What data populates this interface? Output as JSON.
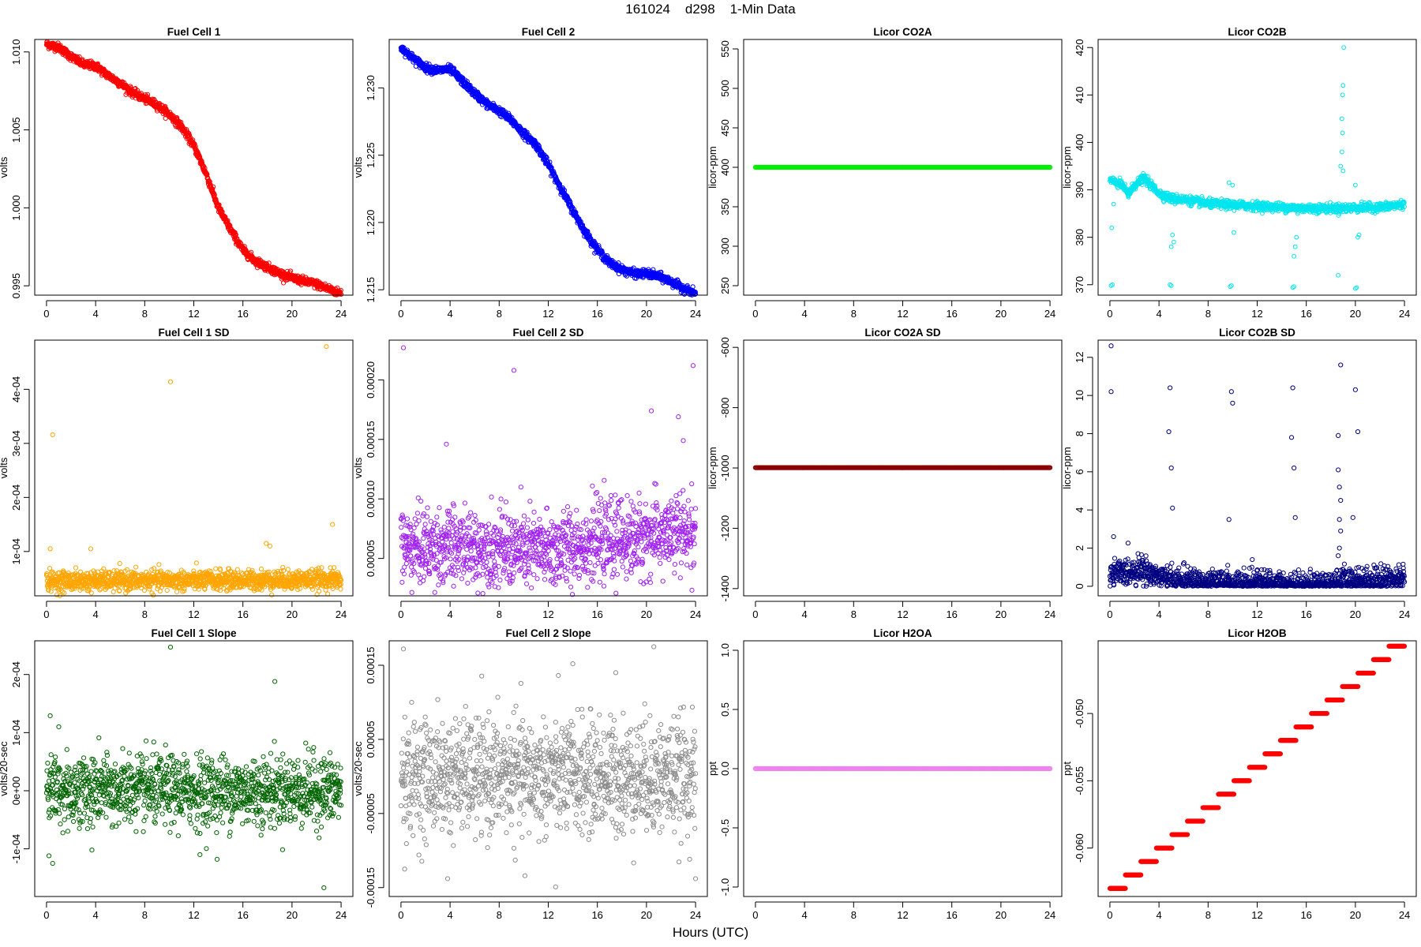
{
  "page": {
    "title": "161024    d298    1-Min Data",
    "xlabel": "Hours (UTC)"
  },
  "colors": {
    "red": "#ff0000",
    "blue": "#0000ff",
    "green": "#00ee00",
    "cyan": "#00e5ee",
    "orange": "#ffa500",
    "purple": "#a020f0",
    "darkred": "#8b0000",
    "navy": "#000080",
    "darkgreen": "#006400",
    "gray": "#8c8c8c",
    "violet": "#ee82ee"
  },
  "chart_data": [
    {
      "type": "scatter",
      "title": "Fuel Cell 1",
      "ylabel": "volts",
      "color": "#ff0000",
      "xlim": [
        -0.96,
        24.96
      ],
      "ylim": [
        0.9944,
        1.0108
      ],
      "xticks": [
        0,
        4,
        8,
        12,
        16,
        20,
        24
      ],
      "xtick_labels": [
        "0",
        "4",
        "8",
        "12",
        "16",
        "20",
        "24"
      ],
      "yticks": [
        0.995,
        1.0,
        1.005,
        1.01
      ],
      "ytick_labels": [
        "0.995",
        "1.000",
        "1.005",
        "1.010"
      ],
      "trend": [
        [
          0,
          1.0105
        ],
        [
          1,
          1.0103
        ],
        [
          2,
          1.0097
        ],
        [
          3,
          1.0092
        ],
        [
          4,
          1.0091
        ],
        [
          5,
          1.0085
        ],
        [
          6,
          1.008
        ],
        [
          7,
          1.0074
        ],
        [
          8,
          1.007
        ],
        [
          9,
          1.0066
        ],
        [
          10,
          1.006
        ],
        [
          11,
          1.0052
        ],
        [
          12,
          1.004
        ],
        [
          13,
          1.0022
        ],
        [
          14,
          1.0
        ],
        [
          15,
          0.9986
        ],
        [
          16,
          0.9973
        ],
        [
          17,
          0.9966
        ],
        [
          18,
          0.9962
        ],
        [
          19,
          0.9958
        ],
        [
          20,
          0.9955
        ],
        [
          21,
          0.9953
        ],
        [
          22,
          0.9951
        ],
        [
          23,
          0.9948
        ],
        [
          24,
          0.9945
        ]
      ],
      "noise": 0.00013,
      "marker_size": 2.6
    },
    {
      "type": "scatter",
      "title": "Fuel Cell 2",
      "ylabel": "volts",
      "color": "#0000ff",
      "xlim": [
        -0.96,
        24.96
      ],
      "ylim": [
        1.2146,
        1.2336
      ],
      "xticks": [
        0,
        4,
        8,
        12,
        16,
        20,
        24
      ],
      "xtick_labels": [
        "0",
        "4",
        "8",
        "12",
        "16",
        "20",
        "24"
      ],
      "yticks": [
        1.215,
        1.22,
        1.225,
        1.23
      ],
      "ytick_labels": [
        "1.215",
        "1.220",
        "1.225",
        "1.230"
      ],
      "trend": [
        [
          0,
          1.233
        ],
        [
          1,
          1.2322
        ],
        [
          2,
          1.2315
        ],
        [
          3,
          1.2313
        ],
        [
          4,
          1.2314
        ],
        [
          5,
          1.2305
        ],
        [
          6,
          1.2296
        ],
        [
          7,
          1.2288
        ],
        [
          8,
          1.2283
        ],
        [
          9,
          1.2276
        ],
        [
          10,
          1.2266
        ],
        [
          11,
          1.2258
        ],
        [
          12,
          1.2243
        ],
        [
          13,
          1.2226
        ],
        [
          14,
          1.2209
        ],
        [
          15,
          1.2193
        ],
        [
          16,
          1.218
        ],
        [
          17,
          1.217
        ],
        [
          18,
          1.2165
        ],
        [
          19,
          1.2162
        ],
        [
          20,
          1.2162
        ],
        [
          21,
          1.216
        ],
        [
          22,
          1.2156
        ],
        [
          23,
          1.2151
        ],
        [
          24,
          1.2147
        ]
      ],
      "noise": 0.00015,
      "marker_size": 2.6
    },
    {
      "type": "scatter",
      "title": "Licor CO2A",
      "ylabel": "licor-ppm",
      "color": "#00ee00",
      "xlim": [
        -0.96,
        24.96
      ],
      "ylim": [
        238,
        562
      ],
      "xticks": [
        0,
        4,
        8,
        12,
        16,
        20,
        24
      ],
      "xtick_labels": [
        "0",
        "4",
        "8",
        "12",
        "16",
        "20",
        "24"
      ],
      "yticks": [
        250,
        300,
        350,
        400,
        450,
        500,
        550
      ],
      "ytick_labels": [
        "250",
        "300",
        "350",
        "400",
        "450",
        "500",
        "550"
      ],
      "trend": [
        [
          0,
          400
        ],
        [
          24,
          400
        ]
      ],
      "noise": 0,
      "marker_size": 2.6
    },
    {
      "type": "scatter",
      "title": "Licor CO2B",
      "ylabel": "licor-ppm",
      "color": "#00e5ee",
      "xlim": [
        -0.96,
        24.96
      ],
      "ylim": [
        367.8,
        421.7
      ],
      "xticks": [
        0,
        4,
        8,
        12,
        16,
        20,
        24
      ],
      "xtick_labels": [
        "0",
        "4",
        "8",
        "12",
        "16",
        "20",
        "24"
      ],
      "yticks": [
        370,
        380,
        390,
        400,
        410,
        420
      ],
      "ytick_labels": [
        "370",
        "380",
        "390",
        "400",
        "410",
        "420"
      ],
      "trend": [
        [
          0,
          392
        ],
        [
          1,
          391
        ],
        [
          1.5,
          389
        ],
        [
          2,
          391
        ],
        [
          2.8,
          392.5
        ],
        [
          3.5,
          390.5
        ],
        [
          4.2,
          389
        ],
        [
          5,
          388.2
        ],
        [
          6,
          388
        ],
        [
          8,
          387.1
        ],
        [
          10,
          386.8
        ],
        [
          12,
          386.6
        ],
        [
          14,
          386.3
        ],
        [
          16,
          386.1
        ],
        [
          18,
          386.1
        ],
        [
          20,
          386.2
        ],
        [
          22,
          386.3
        ],
        [
          23,
          386.6
        ],
        [
          24,
          387
        ]
      ],
      "noise": 0.45,
      "marker_size": 2.4,
      "outliers": [
        [
          0.1,
          369.8
        ],
        [
          0.2,
          370
        ],
        [
          0.15,
          382
        ],
        [
          0.3,
          387
        ],
        [
          5.0,
          369.8
        ],
        [
          4.9,
          370
        ],
        [
          5.0,
          378
        ],
        [
          5.1,
          380.5
        ],
        [
          5.2,
          379
        ],
        [
          5.3,
          387
        ],
        [
          9.8,
          369.6
        ],
        [
          9.9,
          369.8
        ],
        [
          10.0,
          391
        ],
        [
          10.1,
          381
        ],
        [
          9.7,
          391.5
        ],
        [
          14.9,
          369.4
        ],
        [
          15.0,
          369.6
        ],
        [
          15.0,
          376
        ],
        [
          15.1,
          378
        ],
        [
          15.2,
          380
        ],
        [
          15.3,
          385
        ],
        [
          18.6,
          372
        ],
        [
          18.7,
          385
        ],
        [
          18.8,
          395
        ],
        [
          18.9,
          405
        ],
        [
          18.95,
          410
        ],
        [
          19.0,
          412
        ],
        [
          19.05,
          420
        ],
        [
          18.9,
          398
        ],
        [
          18.95,
          402
        ],
        [
          19.0,
          394
        ],
        [
          20.0,
          369.2
        ],
        [
          20.1,
          369.4
        ],
        [
          20.2,
          380
        ],
        [
          20.3,
          380.5
        ],
        [
          20.0,
          391
        ]
      ]
    },
    {
      "type": "scatter",
      "title": "Fuel Cell 1 SD",
      "ylabel": "volts",
      "color": "#ffa500",
      "xlim": [
        -0.96,
        24.96
      ],
      "ylim": [
        1.8e-05,
        0.000491
      ],
      "xticks": [
        0,
        4,
        8,
        12,
        16,
        20,
        24
      ],
      "xtick_labels": [
        "0",
        "4",
        "8",
        "12",
        "16",
        "20",
        "24"
      ],
      "yticks": [
        0.0001,
        0.0002,
        0.0003,
        0.0004
      ],
      "ytick_labels": [
        "1e-04",
        "2e-04",
        "3e-04",
        "4e-04"
      ],
      "trend": [
        [
          0,
          4.5e-05
        ],
        [
          24,
          4.8e-05
        ]
      ],
      "noise": 9e-06,
      "marker_size": 2.6,
      "outliers": [
        [
          0.5,
          0.000316
        ],
        [
          10.1,
          0.000414
        ],
        [
          22.8,
          0.000479
        ],
        [
          23.3,
          0.00015
        ],
        [
          18.2,
          0.00011
        ],
        [
          17.9,
          0.000115
        ],
        [
          3.6,
          0.000105
        ],
        [
          0.3,
          0.000105
        ]
      ]
    },
    {
      "type": "scatter",
      "title": "Fuel Cell 2 SD",
      "ylabel": "volts",
      "color": "#a020f0",
      "xlim": [
        -0.96,
        24.96
      ],
      "ylim": [
        1.86e-05,
        0.0002334
      ],
      "xticks": [
        0,
        4,
        8,
        12,
        16,
        20,
        24
      ],
      "xtick_labels": [
        "0",
        "4",
        "8",
        "12",
        "16",
        "20",
        "24"
      ],
      "yticks": [
        5e-05,
        0.0001,
        0.00015,
        0.0002
      ],
      "ytick_labels": [
        "0.00005",
        "0.00010",
        "0.00015",
        "0.00020"
      ],
      "trend": [
        [
          0,
          6e-05
        ],
        [
          8,
          5.8e-05
        ],
        [
          12,
          5.6e-05
        ],
        [
          16,
          6.4e-05
        ],
        [
          20,
          6.8e-05
        ],
        [
          24,
          7.2e-05
        ]
      ],
      "noise": 1.6e-05,
      "marker_size": 2.6,
      "outliers": [
        [
          0.2,
          0.000227
        ],
        [
          9.2,
          0.000208
        ],
        [
          23.8,
          0.000212
        ],
        [
          20.4,
          0.000174
        ],
        [
          22.6,
          0.000169
        ],
        [
          3.7,
          0.000146
        ],
        [
          23.0,
          0.000149
        ]
      ]
    },
    {
      "type": "scatter",
      "title": "Licor CO2A SD",
      "ylabel": "licor-ppm",
      "color": "#8b0000",
      "xlim": [
        -0.96,
        24.96
      ],
      "ylim": [
        -1424,
        -576
      ],
      "xticks": [
        0,
        4,
        8,
        12,
        16,
        20,
        24
      ],
      "xtick_labels": [
        "0",
        "4",
        "8",
        "12",
        "16",
        "20",
        "24"
      ],
      "yticks": [
        -1400,
        -1200,
        -1000,
        -800,
        -600
      ],
      "ytick_labels": [
        "-1400",
        "-1200",
        "-1000",
        "-800",
        "-600"
      ],
      "trend": [
        [
          0,
          -999
        ],
        [
          24,
          -999
        ]
      ],
      "noise": 0,
      "marker_size": 2.6
    },
    {
      "type": "scatter",
      "title": "Licor CO2B SD",
      "ylabel": "licor-ppm",
      "color": "#000080",
      "xlim": [
        -0.96,
        24.96
      ],
      "ylim": [
        -0.5,
        12.9
      ],
      "xticks": [
        0,
        4,
        8,
        12,
        16,
        20,
        24
      ],
      "xtick_labels": [
        "0",
        "4",
        "8",
        "12",
        "16",
        "20",
        "24"
      ],
      "yticks": [
        0,
        2,
        4,
        6,
        8,
        10,
        12
      ],
      "ytick_labels": [
        "0",
        "2",
        "4",
        "6",
        "8",
        "10",
        "12"
      ],
      "trend": [
        [
          0,
          0.6
        ],
        [
          1,
          0.7
        ],
        [
          2.5,
          0.9
        ],
        [
          4,
          0.5
        ],
        [
          5,
          0.3
        ],
        [
          7,
          0.25
        ],
        [
          8,
          0.1
        ],
        [
          12,
          0.1
        ],
        [
          16,
          0.05
        ],
        [
          18,
          0.1
        ],
        [
          19,
          0.3
        ],
        [
          21,
          0.3
        ],
        [
          23,
          0.4
        ],
        [
          24,
          0.5
        ]
      ],
      "noise": 0.35,
      "marker_size": 2.6,
      "nonneg": true,
      "outliers": [
        [
          0.1,
          12.6
        ],
        [
          0.1,
          10.2
        ],
        [
          0.3,
          2.6
        ],
        [
          4.9,
          10.4
        ],
        [
          4.8,
          8.1
        ],
        [
          5.0,
          6.2
        ],
        [
          5.1,
          4.1
        ],
        [
          9.9,
          10.2
        ],
        [
          10.0,
          9.6
        ],
        [
          9.7,
          3.5
        ],
        [
          14.9,
          10.4
        ],
        [
          14.8,
          7.8
        ],
        [
          15.0,
          6.2
        ],
        [
          15.1,
          3.6
        ],
        [
          18.8,
          11.6
        ],
        [
          18.6,
          7.9
        ],
        [
          18.6,
          6.1
        ],
        [
          18.7,
          5.2
        ],
        [
          18.8,
          4.5
        ],
        [
          18.7,
          3.5
        ],
        [
          18.8,
          2.9
        ],
        [
          18.7,
          2.0
        ],
        [
          18.6,
          1.6
        ],
        [
          20.0,
          10.3
        ],
        [
          20.2,
          8.1
        ],
        [
          19.8,
          3.6
        ],
        [
          11.6,
          1.4
        ],
        [
          9.6,
          1.1
        ]
      ]
    },
    {
      "type": "scatter",
      "title": "Fuel Cell 1 Slope",
      "ylabel": "volts/20-sec",
      "color": "#006400",
      "xlim": [
        -0.96,
        24.96
      ],
      "ylim": [
        -0.000182,
        0.000258
      ],
      "xticks": [
        0,
        4,
        8,
        12,
        16,
        20,
        24
      ],
      "xtick_labels": [
        "0",
        "4",
        "8",
        "12",
        "16",
        "20",
        "24"
      ],
      "yticks": [
        -0.0001,
        0,
        0.0001,
        0.0002
      ],
      "ytick_labels": [
        "-1e-04",
        "0e+00",
        "1e-04",
        "2e-04"
      ],
      "trend": [
        [
          0,
          0
        ],
        [
          24,
          0
        ]
      ],
      "noise": 3e-05,
      "marker_size": 2.6,
      "outliers": [
        [
          10.1,
          0.000247
        ],
        [
          18.6,
          0.000188
        ],
        [
          0.3,
          0.000129
        ],
        [
          0.5,
          -0.000125
        ],
        [
          0.2,
          -0.000112
        ],
        [
          22.6,
          -0.000167
        ],
        [
          13.9,
          -0.000118
        ],
        [
          12.5,
          -0.00011
        ],
        [
          3.7,
          -0.000102
        ],
        [
          1.0,
          0.00011
        ]
      ]
    },
    {
      "type": "scatter",
      "title": "Fuel Cell 2 Slope",
      "ylabel": "volts/20-sec",
      "color": "#8c8c8c",
      "xlim": [
        -0.96,
        24.96
      ],
      "ylim": [
        -0.000162,
        0.000183
      ],
      "xticks": [
        0,
        4,
        8,
        12,
        16,
        20,
        24
      ],
      "xtick_labels": [
        "0",
        "4",
        "8",
        "12",
        "16",
        "20",
        "24"
      ],
      "yticks": [
        -0.00015,
        -5e-05,
        5e-05,
        0.00015
      ],
      "ytick_labels": [
        "-0.00015",
        "-0.00005",
        "0.00005",
        "0.00015"
      ],
      "trend": [
        [
          0,
          0
        ],
        [
          24,
          0
        ]
      ],
      "noise": 3.8e-05,
      "marker_size": 2.6,
      "outliers": [
        [
          0.2,
          0.000172
        ],
        [
          20.6,
          0.000175
        ],
        [
          14.0,
          0.000152
        ],
        [
          12.6,
          -0.000149
        ],
        [
          0.3,
          -0.000125
        ],
        [
          3.8,
          -0.000138
        ],
        [
          10.1,
          -0.000134
        ],
        [
          24,
          -0.000138
        ],
        [
          17.5,
          0.00014
        ]
      ]
    },
    {
      "type": "scatter",
      "title": "Licor H2OA",
      "ylabel": "ppt",
      "color": "#ee82ee",
      "xlim": [
        -0.96,
        24.96
      ],
      "ylim": [
        -1.08,
        1.08
      ],
      "xticks": [
        0,
        4,
        8,
        12,
        16,
        20,
        24
      ],
      "xtick_labels": [
        "0",
        "4",
        "8",
        "12",
        "16",
        "20",
        "24"
      ],
      "yticks": [
        -1.0,
        -0.5,
        0.0,
        0.5,
        1.0
      ],
      "ytick_labels": [
        "-1.0",
        "-0.5",
        "0.0",
        "0.5",
        "1.0"
      ],
      "trend": [
        [
          0,
          0
        ],
        [
          24,
          0
        ]
      ],
      "noise": 0,
      "marker_size": 2.6
    },
    {
      "type": "scatter",
      "title": "Licor H2OB",
      "ylabel": "ppt",
      "color": "#ff0000",
      "xlim": [
        -0.96,
        24.96
      ],
      "ylim": [
        -0.0636,
        -0.0446
      ],
      "xticks": [
        0,
        4,
        8,
        12,
        16,
        20,
        24
      ],
      "xtick_labels": [
        "0",
        "4",
        "8",
        "12",
        "16",
        "20",
        "24"
      ],
      "yticks": [
        -0.06,
        -0.055,
        -0.05
      ],
      "ytick_labels": [
        "-0.060",
        "-0.055",
        "-0.050"
      ],
      "steps": {
        "x_start": 0,
        "x_end": 24,
        "y_start": -0.063,
        "y_step": 0.001,
        "count": 19
      },
      "marker_size": 2.6
    }
  ]
}
